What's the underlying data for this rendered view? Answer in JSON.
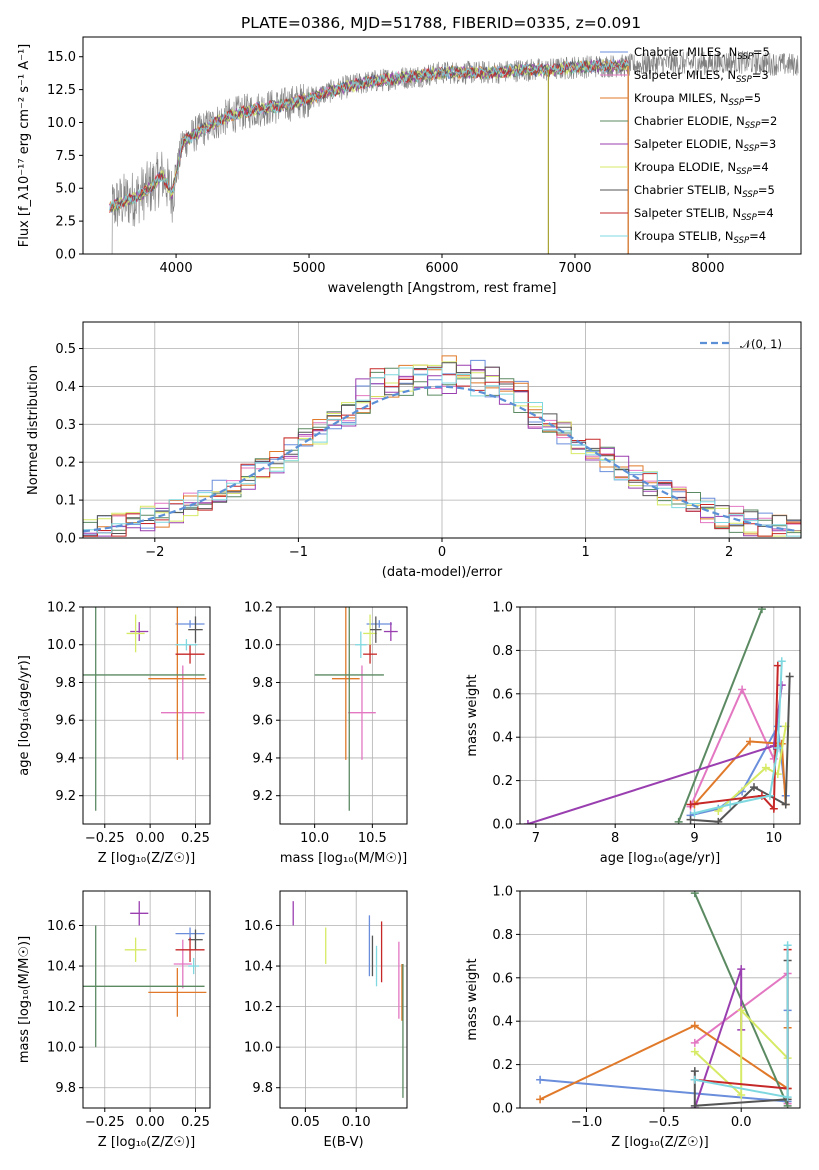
{
  "colors": {
    "chabrier_miles": "#6a8edb",
    "salpeter_miles": "#e377c2",
    "kroupa_miles": "#e07a2a",
    "chabrier_elodie": "#5b8a62",
    "salpeter_elodie": "#9a3fb0",
    "kroupa_elodie": "#d7ea66",
    "chabrier_stelib": "#555555",
    "salpeter_stelib": "#c62828",
    "kroupa_stelib": "#7fd8e0",
    "observed": "#808080",
    "gaussian": "#5b8fd6",
    "grid": "#b0b0b0"
  },
  "chart_data": [
    {
      "id": "spectrum",
      "type": "line",
      "title": "PLATE=0386, MJD=51788, FIBERID=0335, z=0.091",
      "xlabel": "wavelength [Angstrom, rest frame]",
      "ylabel": "Flux [f_λ10⁻¹⁷ erg cm⁻² s⁻¹ A⁻¹]",
      "xlim": [
        3300,
        8700
      ],
      "ylim": [
        0,
        16.5
      ],
      "xticks": [
        "4000",
        "5000",
        "6000",
        "7000",
        "8000"
      ],
      "yticks": [
        "0.0",
        "2.5",
        "5.0",
        "7.5",
        "10.0",
        "12.5",
        "15.0"
      ],
      "observed_trend": {
        "x": [
          3500,
          3600,
          3700,
          3800,
          3900,
          3970,
          4050,
          4200,
          4400,
          4600,
          4800,
          5000,
          5200,
          5400,
          5600,
          5800,
          6000,
          6200,
          6400,
          6600,
          6800,
          7000,
          7200,
          7400,
          7600,
          7800,
          8000,
          8200,
          8400,
          8600
        ],
        "y": [
          3.5,
          4.0,
          4.3,
          5.0,
          6.0,
          4.5,
          8.5,
          9.5,
          10.5,
          11.0,
          11.3,
          11.8,
          12.5,
          13.0,
          13.3,
          13.5,
          13.8,
          13.8,
          13.8,
          14.0,
          14.0,
          14.2,
          14.3,
          14.3,
          14.5,
          14.5,
          14.5,
          14.6,
          14.5,
          14.4
        ]
      },
      "model_x_range": [
        3500,
        7400
      ],
      "model_drops": [
        6800,
        7400
      ],
      "series": [
        {
          "name": "Chabrier MILES, N_SSP=5",
          "color_key": "chabrier_miles"
        },
        {
          "name": "Salpeter MILES, N_SSP=3",
          "color_key": "salpeter_miles"
        },
        {
          "name": "Kroupa MILES, N_SSP=5",
          "color_key": "kroupa_miles"
        },
        {
          "name": "Chabrier ELODIE, N_SSP=2",
          "color_key": "chabrier_elodie"
        },
        {
          "name": "Salpeter ELODIE, N_SSP=3",
          "color_key": "salpeter_elodie"
        },
        {
          "name": "Kroupa ELODIE, N_SSP=4",
          "color_key": "kroupa_elodie"
        },
        {
          "name": "Chabrier STELIB, N_SSP=5",
          "color_key": "chabrier_stelib"
        },
        {
          "name": "Salpeter STELIB, N_SSP=4",
          "color_key": "salpeter_stelib"
        },
        {
          "name": "Kroupa STELIB, N_SSP=4",
          "color_key": "kroupa_stelib"
        }
      ]
    },
    {
      "id": "residuals",
      "type": "histogram",
      "xlabel": "(data-model)/error",
      "ylabel": "Normed distribution",
      "xlim": [
        -2.5,
        2.5
      ],
      "ylim": [
        0,
        0.57
      ],
      "xticks": [
        "−2",
        "−1",
        "0",
        "1",
        "2"
      ],
      "yticks": [
        "0.0",
        "0.1",
        "0.2",
        "0.3",
        "0.4",
        "0.5"
      ],
      "bin_width": 0.1,
      "gaussian_label": "𝒩(0, 1)",
      "base_hist": [
        0.02,
        0.03,
        0.04,
        0.05,
        0.06,
        0.07,
        0.08,
        0.09,
        0.1,
        0.11,
        0.12,
        0.13,
        0.14,
        0.16,
        0.17,
        0.19,
        0.2,
        0.22,
        0.24,
        0.26,
        0.27,
        0.29,
        0.3,
        0.32,
        0.33,
        0.35,
        0.36,
        0.38,
        0.39,
        0.4,
        0.42,
        0.45,
        0.4,
        0.4,
        0.38,
        0.39,
        0.37,
        0.35,
        0.34,
        0.31,
        0.3,
        0.28,
        0.26,
        0.25,
        0.23,
        0.22,
        0.2,
        0.18,
        0.16,
        0.15,
        0.13,
        0.12,
        0.1,
        0.09,
        0.08,
        0.07,
        0.06,
        0.055,
        0.05,
        0.04,
        0.035,
        0.03,
        0.025,
        0.02,
        0.02
      ]
    },
    {
      "id": "age_vs_Z",
      "type": "errorbar",
      "xlabel": "Z [log₁₀(Z/Z☉)]",
      "ylabel": "age  [log₁₀(age/yr)]",
      "xlim": [
        -0.37,
        0.33
      ],
      "ylim": [
        9.05,
        10.2
      ],
      "xticks": [
        "−0.25",
        "0.00",
        "0.25"
      ],
      "xtick_values": [
        -0.25,
        0,
        0.25
      ],
      "yticks": [
        "9.2",
        "9.4",
        "9.6",
        "9.8",
        "10.0",
        "10.2"
      ],
      "ytick_values": [
        9.2,
        9.4,
        9.6,
        9.8,
        10.0,
        10.2
      ],
      "points": [
        {
          "c": "chabrier_miles",
          "x": 0.22,
          "xe": 0.08,
          "y": 10.11,
          "ye": 0.02
        },
        {
          "c": "salpeter_miles",
          "x": 0.18,
          "xe": 0.12,
          "y": 9.64,
          "ye": 0.25
        },
        {
          "c": "kroupa_miles",
          "x": 0.15,
          "xe": 0.16,
          "y": 9.82,
          "ye": 0.43
        },
        {
          "c": "chabrier_elodie",
          "x": -0.3,
          "xe": 0.6,
          "y": 9.84,
          "ye": 0.72
        },
        {
          "c": "salpeter_elodie",
          "x": -0.06,
          "xe": 0.05,
          "y": 10.07,
          "ye": 0.05
        },
        {
          "c": "kroupa_elodie",
          "x": -0.08,
          "xe": 0.05,
          "y": 10.06,
          "ye": 0.1
        },
        {
          "c": "chabrier_stelib",
          "x": 0.25,
          "xe": 0.04,
          "y": 10.08,
          "ye": 0.07
        },
        {
          "c": "salpeter_stelib",
          "x": 0.22,
          "xe": 0.08,
          "y": 9.95,
          "ye": 0.05
        },
        {
          "c": "kroupa_stelib",
          "x": 0.2,
          "xe": 0.06,
          "y": 10.0,
          "ye": 0.03
        }
      ]
    },
    {
      "id": "age_vs_mass",
      "type": "errorbar",
      "xlabel": "mass [log₁₀(M/M☉)]",
      "xlim": [
        9.7,
        10.8
      ],
      "ylim": [
        9.05,
        10.2
      ],
      "xticks": [
        "10.0",
        "10.5"
      ],
      "xtick_values": [
        10.0,
        10.5
      ],
      "yticks": [
        "9.2",
        "9.4",
        "9.6",
        "9.8",
        "10.0",
        "10.2"
      ],
      "ytick_values": [
        9.2,
        9.4,
        9.6,
        9.8,
        10.0,
        10.2
      ],
      "points": [
        {
          "c": "chabrier_miles",
          "x": 10.56,
          "xe": 0.11,
          "y": 10.11,
          "ye": 0.02
        },
        {
          "c": "salpeter_miles",
          "x": 10.41,
          "xe": 0.12,
          "y": 9.64,
          "ye": 0.25
        },
        {
          "c": "kroupa_miles",
          "x": 10.27,
          "xe": 0.12,
          "y": 9.82,
          "ye": 0.43
        },
        {
          "c": "chabrier_elodie",
          "x": 10.3,
          "xe": 0.3,
          "y": 9.84,
          "ye": 0.72
        },
        {
          "c": "salpeter_elodie",
          "x": 10.66,
          "xe": 0.06,
          "y": 10.07,
          "ye": 0.05
        },
        {
          "c": "kroupa_elodie",
          "x": 10.48,
          "xe": 0.06,
          "y": 10.06,
          "ye": 0.1
        },
        {
          "c": "chabrier_stelib",
          "x": 10.53,
          "xe": 0.05,
          "y": 10.08,
          "ye": 0.07
        },
        {
          "c": "salpeter_stelib",
          "x": 10.48,
          "xe": 0.06,
          "y": 9.95,
          "ye": 0.05
        },
        {
          "c": "kroupa_stelib",
          "x": 10.4,
          "xe": 0.05,
          "y": 10.0,
          "ye": 0.07
        }
      ]
    },
    {
      "id": "mass_vs_Z",
      "type": "errorbar",
      "xlabel": "Z [log₁₀(Z/Z☉)]",
      "ylabel": "mass [log₁₀(M/M☉)]",
      "xlim": [
        -0.37,
        0.33
      ],
      "ylim": [
        9.7,
        10.77
      ],
      "xticks": [
        "−0.25",
        "0.00",
        "0.25"
      ],
      "xtick_values": [
        -0.25,
        0,
        0.25
      ],
      "yticks": [
        "9.8",
        "10.0",
        "10.2",
        "10.4",
        "10.6"
      ],
      "ytick_values": [
        9.8,
        10.0,
        10.2,
        10.4,
        10.6
      ],
      "points": [
        {
          "c": "chabrier_miles",
          "x": 0.22,
          "xe": 0.08,
          "y": 10.56,
          "ye": 0.03
        },
        {
          "c": "salpeter_miles",
          "x": 0.18,
          "xe": 0.05,
          "y": 10.41,
          "ye": 0.12
        },
        {
          "c": "kroupa_miles",
          "x": 0.15,
          "xe": 0.16,
          "y": 10.27,
          "ye": 0.12
        },
        {
          "c": "chabrier_elodie",
          "x": -0.3,
          "xe": 0.6,
          "y": 10.3,
          "ye": 0.3
        },
        {
          "c": "salpeter_elodie",
          "x": -0.06,
          "xe": 0.05,
          "y": 10.66,
          "ye": 0.06
        },
        {
          "c": "kroupa_elodie",
          "x": -0.08,
          "xe": 0.06,
          "y": 10.48,
          "ye": 0.06
        },
        {
          "c": "chabrier_stelib",
          "x": 0.25,
          "xe": 0.04,
          "y": 10.53,
          "ye": 0.05
        },
        {
          "c": "salpeter_stelib",
          "x": 0.22,
          "xe": 0.08,
          "y": 10.48,
          "ye": 0.06
        },
        {
          "c": "kroupa_stelib",
          "x": 0.24,
          "xe": 0.03,
          "y": 10.4,
          "ye": 0.04
        }
      ]
    },
    {
      "id": "mass_vs_ebv",
      "type": "errorbar",
      "xlabel": "E(B-V)",
      "xlim": [
        0.025,
        0.15
      ],
      "ylim": [
        9.7,
        10.77
      ],
      "xticks": [
        "0.05",
        "0.10"
      ],
      "xtick_values": [
        0.05,
        0.1
      ],
      "yticks": [
        "9.8",
        "10.0",
        "10.2",
        "10.4",
        "10.6"
      ],
      "ytick_values": [
        9.8,
        10.0,
        10.2,
        10.4,
        10.6
      ],
      "points": [
        {
          "c": "chabrier_miles",
          "x": 0.113,
          "xe": 0,
          "y": 10.5,
          "ye": 0.15
        },
        {
          "c": "salpeter_miles",
          "x": 0.142,
          "xe": 0,
          "y": 10.33,
          "ye": 0.19
        },
        {
          "c": "kroupa_miles",
          "x": 0.145,
          "xe": 0,
          "y": 10.27,
          "ye": 0.14
        },
        {
          "c": "chabrier_elodie",
          "x": 0.146,
          "xe": 0,
          "y": 10.08,
          "ye": 0.33
        },
        {
          "c": "salpeter_elodie",
          "x": 0.038,
          "xe": 0,
          "y": 10.66,
          "ye": 0.06
        },
        {
          "c": "kroupa_elodie",
          "x": 0.07,
          "xe": 0,
          "y": 10.5,
          "ye": 0.09
        },
        {
          "c": "chabrier_stelib",
          "x": 0.116,
          "xe": 0,
          "y": 10.45,
          "ye": 0.1
        },
        {
          "c": "salpeter_stelib",
          "x": 0.125,
          "xe": 0,
          "y": 10.47,
          "ye": 0.15
        },
        {
          "c": "kroupa_stelib",
          "x": 0.12,
          "xe": 0,
          "y": 10.4,
          "ye": 0.1
        }
      ]
    },
    {
      "id": "weight_vs_age",
      "type": "line",
      "xlabel": "age  [log₁₀(age/yr)]",
      "ylabel": "mass weight",
      "xlim": [
        6.8,
        10.33
      ],
      "ylim": [
        0,
        1.0
      ],
      "xticks": [
        "7",
        "8",
        "9",
        "10"
      ],
      "xtick_values": [
        7,
        8,
        9,
        10
      ],
      "yticks": [
        "0.0",
        "0.2",
        "0.4",
        "0.6",
        "0.8",
        "1.0"
      ],
      "ytick_values": [
        0,
        0.2,
        0.4,
        0.6,
        0.8,
        1.0
      ],
      "series": [
        {
          "c": "chabrier_miles",
          "x": [
            8.95,
            9.3,
            9.6,
            10.05,
            10.15
          ],
          "y": [
            0.04,
            0.07,
            0.15,
            0.45,
            0.13
          ]
        },
        {
          "c": "salpeter_miles",
          "x": [
            8.95,
            9.6,
            10.0
          ],
          "y": [
            0.08,
            0.62,
            0.3
          ]
        },
        {
          "c": "kroupa_miles",
          "x": [
            9.0,
            9.7,
            10.1,
            10.15
          ],
          "y": [
            0.09,
            0.38,
            0.37,
            0.09
          ]
        },
        {
          "c": "chabrier_elodie",
          "x": [
            8.8,
            9.85
          ],
          "y": [
            0.01,
            0.99
          ]
        },
        {
          "c": "salpeter_elodie",
          "x": [
            6.9,
            10.0,
            10.1
          ],
          "y": [
            0.0,
            0.36,
            0.64
          ]
        },
        {
          "c": "kroupa_elodie",
          "x": [
            9.3,
            9.9,
            10.05,
            10.15
          ],
          "y": [
            0.06,
            0.26,
            0.23,
            0.45
          ]
        },
        {
          "c": "chabrier_stelib",
          "x": [
            8.95,
            9.3,
            9.75,
            10.15,
            10.2
          ],
          "y": [
            0.02,
            0.01,
            0.17,
            0.09,
            0.68
          ]
        },
        {
          "c": "salpeter_stelib",
          "x": [
            8.95,
            9.85,
            10.0,
            10.05
          ],
          "y": [
            0.09,
            0.13,
            0.07,
            0.73
          ]
        },
        {
          "c": "kroupa_stelib",
          "x": [
            9.0,
            9.45,
            9.95,
            10.05,
            10.1
          ],
          "y": [
            0.05,
            0.09,
            0.13,
            0.35,
            0.75
          ]
        }
      ]
    },
    {
      "id": "weight_vs_Z",
      "type": "line",
      "xlabel": "Z [log₁₀(Z/Z☉)]",
      "ylabel": "mass weight",
      "xlim": [
        -1.43,
        0.38
      ],
      "ylim": [
        0,
        1.0
      ],
      "xticks": [
        "−1.0",
        "−0.5",
        "0.0"
      ],
      "xtick_values": [
        -1.0,
        -0.5,
        0.0
      ],
      "yticks": [
        "0.0",
        "0.2",
        "0.4",
        "0.6",
        "0.8",
        "1.0"
      ],
      "ytick_values": [
        0,
        0.2,
        0.4,
        0.6,
        0.8,
        1.0
      ],
      "series": [
        {
          "c": "chabrier_miles",
          "x": [
            -1.3,
            0.3,
            0.3
          ],
          "y": [
            0.13,
            0.03,
            0.45
          ]
        },
        {
          "c": "salpeter_miles",
          "x": [
            -0.3,
            0.3,
            0.3
          ],
          "y": [
            0.3,
            0.62,
            0.02
          ]
        },
        {
          "c": "kroupa_miles",
          "x": [
            -1.3,
            -0.3,
            0.3,
            0.3
          ],
          "y": [
            0.04,
            0.38,
            0.09,
            0.37
          ]
        },
        {
          "c": "chabrier_elodie",
          "x": [
            -0.3,
            0.3
          ],
          "y": [
            0.99,
            0.01
          ]
        },
        {
          "c": "salpeter_elodie",
          "x": [
            -0.3,
            0.0,
            0.0
          ],
          "y": [
            0.0,
            0.64,
            0.36
          ]
        },
        {
          "c": "kroupa_elodie",
          "x": [
            -0.3,
            0.0,
            0.0,
            0.3
          ],
          "y": [
            0.26,
            0.06,
            0.45,
            0.23
          ]
        },
        {
          "c": "chabrier_stelib",
          "x": [
            -0.3,
            -0.3,
            0.3,
            0.3
          ],
          "y": [
            0.17,
            0.01,
            0.04,
            0.68
          ]
        },
        {
          "c": "salpeter_stelib",
          "x": [
            -0.3,
            0.3,
            0.3
          ],
          "y": [
            0.13,
            0.09,
            0.73
          ]
        },
        {
          "c": "kroupa_stelib",
          "x": [
            -0.3,
            0.3,
            0.3
          ],
          "y": [
            0.13,
            0.05,
            0.75
          ]
        }
      ]
    }
  ]
}
